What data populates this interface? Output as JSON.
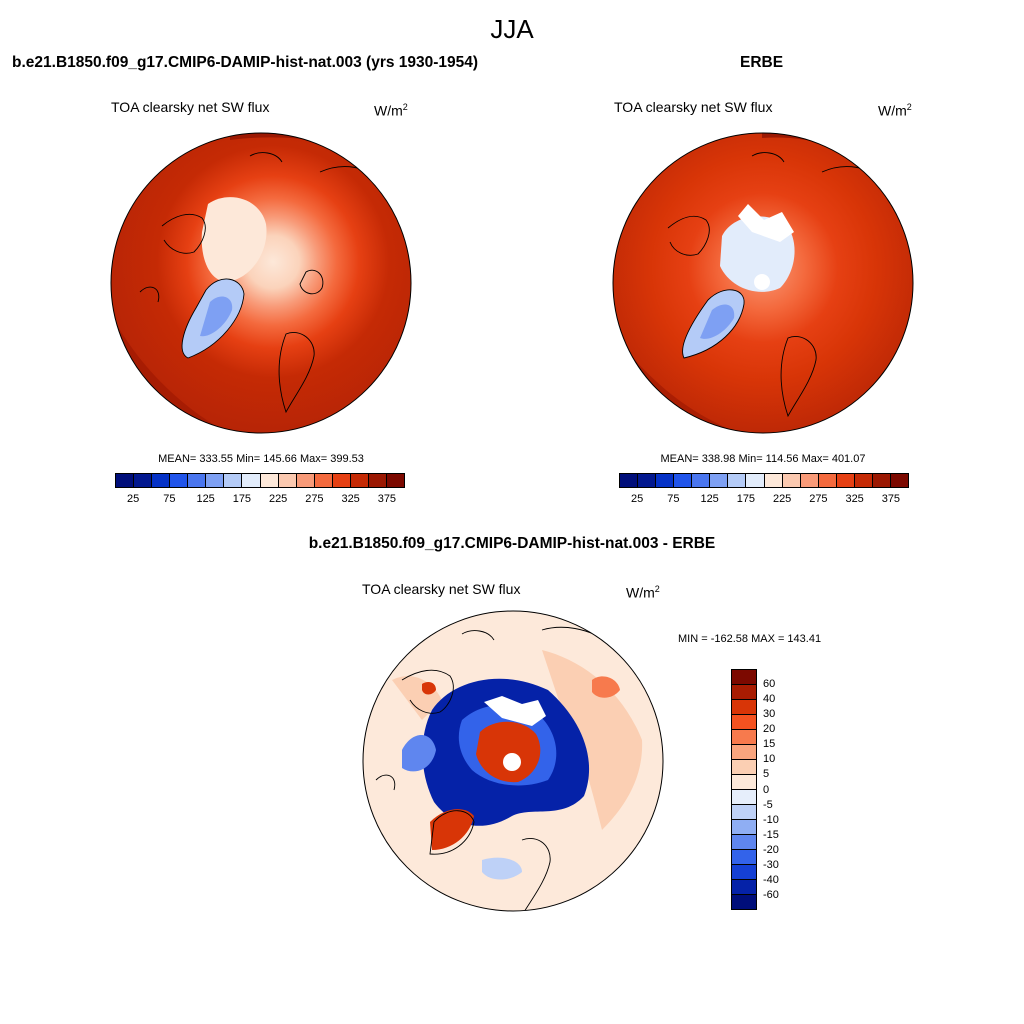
{
  "title": "JJA",
  "panels": [
    {
      "title": "b.e21.B1850.f09_g17.CMIP6-DAMIP-hist-nat.003 (yrs 1930-1954)",
      "variable": "TOA clearsky net SW flux",
      "units_base": "W/m",
      "units_exp": "2",
      "stats": "MEAN= 333.55  Min= 145.66  Max= 399.53",
      "colorbar": {
        "colors": [
          "#000e7a",
          "#02188f",
          "#0532c7",
          "#2054ea",
          "#4a76ef",
          "#7ea0f3",
          "#b4cbf7",
          "#e2ecfb",
          "#fde8d9",
          "#fbc9b0",
          "#f89a78",
          "#f46a3e",
          "#e64013",
          "#c52a05",
          "#9b1802",
          "#7c0900"
        ],
        "labels": [
          "25",
          "75",
          "125",
          "175",
          "225",
          "275",
          "325",
          "375"
        ]
      }
    },
    {
      "title": "ERBE",
      "variable": "TOA clearsky net SW flux",
      "units_base": "W/m",
      "units_exp": "2",
      "stats": "MEAN= 338.98  Min= 114.56  Max= 401.07",
      "colorbar": {
        "colors": [
          "#000e7a",
          "#02188f",
          "#0532c7",
          "#2054ea",
          "#4a76ef",
          "#7ea0f3",
          "#b4cbf7",
          "#e2ecfb",
          "#fde8d9",
          "#fbc9b0",
          "#f89a78",
          "#f46a3e",
          "#e64013",
          "#c52a05",
          "#9b1802",
          "#7c0900"
        ],
        "labels": [
          "25",
          "75",
          "125",
          "175",
          "225",
          "275",
          "325",
          "375"
        ]
      }
    },
    {
      "title": "b.e21.B1850.f09_g17.CMIP6-DAMIP-hist-nat.003 - ERBE",
      "variable": "TOA clearsky net SW flux",
      "units_base": "W/m",
      "units_exp": "2",
      "stats": "MIN = -162.58 MAX = 143.41",
      "colorbar": {
        "colors": [
          "#7c0900",
          "#a81c02",
          "#d83507",
          "#f45220",
          "#f77a4d",
          "#f9a57e",
          "#fbcfb3",
          "#fde9da",
          "#e6eefb",
          "#bed1f7",
          "#8faef3",
          "#5f86ef",
          "#3363ea",
          "#1540d4",
          "#0522a8",
          "#000e7a"
        ],
        "labels": [
          "60",
          "40",
          "30",
          "20",
          "15",
          "10",
          "5",
          "0",
          "-5",
          "-10",
          "-15",
          "-20",
          "-30",
          "-40",
          "-60"
        ]
      }
    }
  ]
}
